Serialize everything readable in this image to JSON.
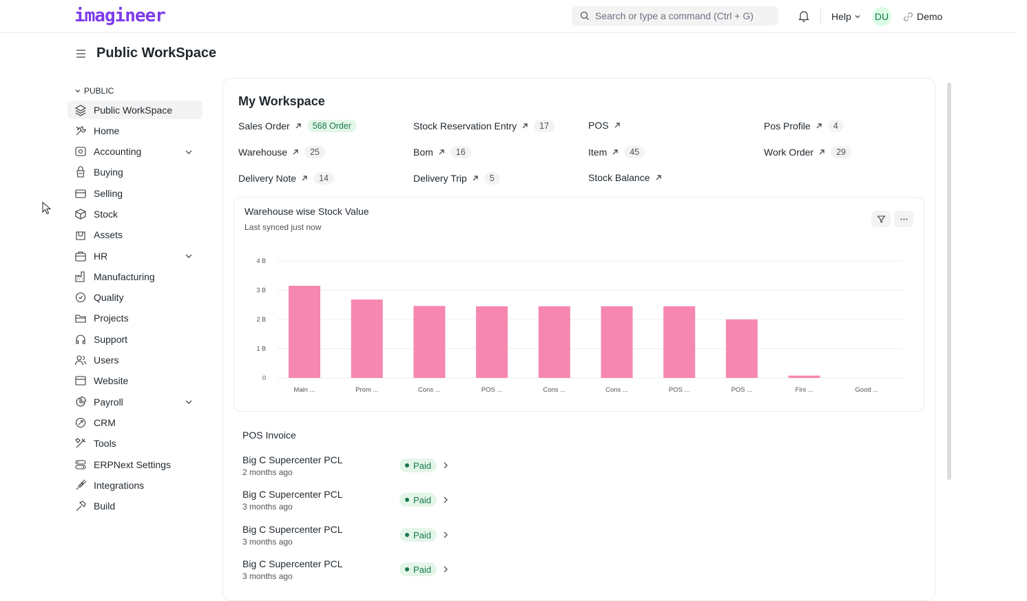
{
  "app": {
    "logo": "imagineer"
  },
  "topbar": {
    "search_placeholder": "Search or type a command (Ctrl + G)",
    "help_label": "Help",
    "avatar_initials": "DU",
    "workspace_label": "Demo"
  },
  "page": {
    "title": "Public WorkSpace"
  },
  "sidebar": {
    "section_label": "PUBLIC",
    "items": [
      {
        "label": "Public WorkSpace",
        "icon": "layers-icon",
        "active": true
      },
      {
        "label": "Home",
        "icon": "tools-icon"
      },
      {
        "label": "Accounting",
        "icon": "eye-icon",
        "expandable": true
      },
      {
        "label": "Buying",
        "icon": "basket-icon"
      },
      {
        "label": "Selling",
        "icon": "card-icon"
      },
      {
        "label": "Stock",
        "icon": "box-icon"
      },
      {
        "label": "Assets",
        "icon": "bag-icon"
      },
      {
        "label": "HR",
        "icon": "briefcase-icon",
        "expandable": true
      },
      {
        "label": "Manufacturing",
        "icon": "factory-icon"
      },
      {
        "label": "Quality",
        "icon": "badge-icon"
      },
      {
        "label": "Projects",
        "icon": "folder-icon"
      },
      {
        "label": "Support",
        "icon": "headset-icon"
      },
      {
        "label": "Users",
        "icon": "users-icon"
      },
      {
        "label": "Website",
        "icon": "browser-icon"
      },
      {
        "label": "Payroll",
        "icon": "chart-pie-icon",
        "expandable": true
      },
      {
        "label": "CRM",
        "icon": "crm-icon"
      },
      {
        "label": "Tools",
        "icon": "wrench-icon"
      },
      {
        "label": "ERPNext Settings",
        "icon": "settings-icon"
      },
      {
        "label": "Integrations",
        "icon": "plug-icon"
      },
      {
        "label": "Build",
        "icon": "hammer-icon"
      }
    ]
  },
  "workspace": {
    "title": "My Workspace",
    "shortcuts": [
      {
        "label": "Sales Order",
        "count": "568 Order",
        "green": true
      },
      {
        "label": "Stock Reservation Entry",
        "count": "17"
      },
      {
        "label": "POS",
        "count": ""
      },
      {
        "label": "Pos Profile",
        "count": "4"
      },
      {
        "label": "Warehouse",
        "count": "25"
      },
      {
        "label": "Bom",
        "count": "16"
      },
      {
        "label": "Item",
        "count": "45"
      },
      {
        "label": "Work Order",
        "count": "29"
      },
      {
        "label": "Delivery Note",
        "count": "14"
      },
      {
        "label": "Delivery Trip",
        "count": "5"
      },
      {
        "label": "Stock Balance",
        "count": ""
      }
    ]
  },
  "chart_card": {
    "title": "Warehouse wise Stock Value",
    "subtitle": "Last synced just now"
  },
  "chart_data": {
    "type": "bar",
    "categories": [
      "Main ...",
      "Prom ...",
      "Cons ...",
      "POS ...",
      "Cons ...",
      "Cons ...",
      "POS ...",
      "POS ...",
      "Fini ...",
      "Good ..."
    ],
    "values": [
      3.15,
      2.68,
      2.46,
      2.45,
      2.45,
      2.45,
      2.45,
      2.0,
      0.08,
      0.0
    ],
    "unit": "B",
    "ylim": [
      0,
      4
    ],
    "yticks": [
      "0",
      "1 B",
      "2 B",
      "3 B",
      "4 B"
    ],
    "color": "#f587b0",
    "grid": true
  },
  "pos_invoice": {
    "title": "POS Invoice",
    "rows": [
      {
        "name": "Big C Supercenter PCL",
        "time": "2 months ago",
        "status": "Paid"
      },
      {
        "name": "Big C Supercenter PCL",
        "time": "3 months ago",
        "status": "Paid"
      },
      {
        "name": "Big C Supercenter PCL",
        "time": "3 months ago",
        "status": "Paid"
      },
      {
        "name": "Big C Supercenter PCL",
        "time": "3 months ago",
        "status": "Paid"
      }
    ]
  }
}
